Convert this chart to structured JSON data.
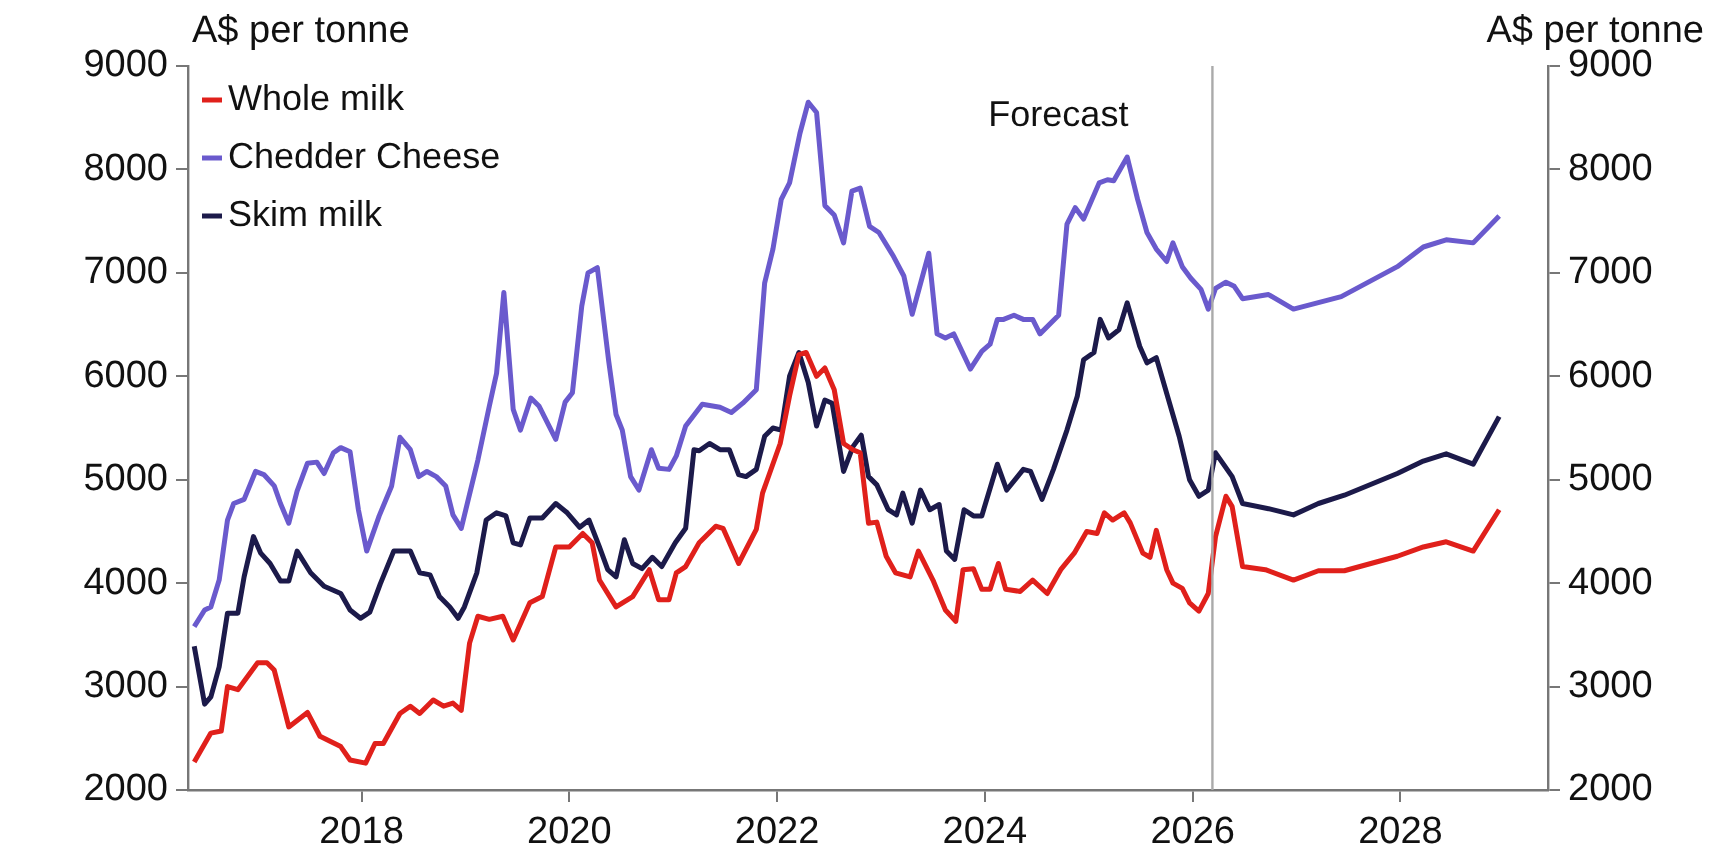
{
  "chart_data": {
    "type": "line",
    "ylabel": "A$ per tonne",
    "y2label": "A$ per tonne",
    "xlim": [
      2016.33,
      2029.42
    ],
    "xticks": [
      2018,
      2020,
      2022,
      2024,
      2026,
      2028
    ],
    "ylim": [
      2000,
      9000
    ],
    "yticks": [
      2000,
      3000,
      4000,
      5000,
      6000,
      7000,
      8000,
      9000
    ],
    "y2lim": [
      2000,
      9000
    ],
    "y2ticks": [
      2000,
      3000,
      4000,
      5000,
      6000,
      7000,
      8000,
      9000
    ],
    "grid": false,
    "legend": "top left",
    "marker": "none",
    "line_style": "solid",
    "ref_lines": [
      {
        "axis": "x",
        "value": 2026.19,
        "label": "Forecast",
        "color": "#aaaaaa"
      }
    ],
    "series": [
      {
        "name": "Whole milk",
        "color": "#e0201b",
        "x": [
          2016.39,
          2016.55,
          2016.65,
          2016.71,
          2016.81,
          2017.0,
          2017.09,
          2017.16,
          2017.3,
          2017.48,
          2017.6,
          2017.8,
          2017.89,
          2018.04,
          2018.13,
          2018.21,
          2018.37,
          2018.47,
          2018.56,
          2018.69,
          2018.79,
          2018.88,
          2018.96,
          2019.04,
          2019.12,
          2019.23,
          2019.36,
          2019.46,
          2019.62,
          2019.74,
          2019.87,
          2020.0,
          2020.13,
          2020.22,
          2020.29,
          2020.45,
          2020.61,
          2020.77,
          2020.86,
          2020.96,
          2021.03,
          2021.12,
          2021.25,
          2021.41,
          2021.48,
          2021.63,
          2021.8,
          2021.86,
          2022.03,
          2022.12,
          2022.21,
          2022.28,
          2022.38,
          2022.46,
          2022.55,
          2022.64,
          2022.73,
          2022.8,
          2022.88,
          2022.96,
          2023.05,
          2023.14,
          2023.28,
          2023.36,
          2023.5,
          2023.62,
          2023.72,
          2023.79,
          2023.89,
          2023.97,
          2024.05,
          2024.13,
          2024.2,
          2024.34,
          2024.46,
          2024.6,
          2024.73,
          2024.86,
          2024.98,
          2025.08,
          2025.15,
          2025.23,
          2025.34,
          2025.4,
          2025.52,
          2025.59,
          2025.65,
          2025.75,
          2025.81,
          2025.9,
          2025.97,
          2026.06,
          2026.15,
          2026.22,
          2026.32,
          2026.38,
          2026.48,
          2026.7,
          2026.97,
          2027.21,
          2027.46,
          2027.97,
          2028.22,
          2028.44,
          2028.7,
          2028.95
        ],
        "values": [
          2270,
          2550,
          2570,
          3000,
          2970,
          3230,
          3230,
          3160,
          2610,
          2750,
          2520,
          2420,
          2290,
          2260,
          2450,
          2450,
          2740,
          2810,
          2740,
          2870,
          2810,
          2840,
          2770,
          3420,
          3680,
          3650,
          3680,
          3450,
          3810,
          3870,
          4350,
          4350,
          4480,
          4390,
          4030,
          3770,
          3870,
          4130,
          3840,
          3840,
          4100,
          4160,
          4390,
          4550,
          4530,
          4190,
          4520,
          4870,
          5350,
          5810,
          6210,
          6230,
          6000,
          6080,
          5870,
          5350,
          5290,
          5260,
          4580,
          4590,
          4260,
          4100,
          4060,
          4310,
          4030,
          3740,
          3630,
          4130,
          4140,
          3940,
          3940,
          4190,
          3940,
          3920,
          4030,
          3900,
          4130,
          4290,
          4500,
          4480,
          4680,
          4610,
          4680,
          4580,
          4290,
          4250,
          4510,
          4130,
          4000,
          3950,
          3810,
          3730,
          3900,
          4450,
          4840,
          4740,
          4160,
          4130,
          4030,
          4120,
          4120,
          4260,
          4350,
          4400,
          4310,
          4710
        ]
      },
      {
        "name": "Chedder Cheese",
        "color": "#6a5acd",
        "x": [
          2016.39,
          2016.49,
          2016.55,
          2016.63,
          2016.71,
          2016.77,
          2016.87,
          2016.98,
          2017.06,
          2017.16,
          2017.22,
          2017.3,
          2017.38,
          2017.48,
          2017.57,
          2017.64,
          2017.73,
          2017.8,
          2017.89,
          2017.97,
          2018.05,
          2018.17,
          2018.29,
          2018.37,
          2018.47,
          2018.55,
          2018.63,
          2018.72,
          2018.81,
          2018.88,
          2018.96,
          2019.12,
          2019.23,
          2019.3,
          2019.37,
          2019.46,
          2019.53,
          2019.63,
          2019.71,
          2019.87,
          2019.96,
          2020.03,
          2020.12,
          2020.18,
          2020.27,
          2020.38,
          2020.45,
          2020.51,
          2020.59,
          2020.67,
          2020.79,
          2020.86,
          2020.96,
          2021.03,
          2021.12,
          2021.28,
          2021.45,
          2021.56,
          2021.67,
          2021.8,
          2021.88,
          2021.96,
          2022.04,
          2022.12,
          2022.22,
          2022.3,
          2022.38,
          2022.46,
          2022.55,
          2022.64,
          2022.72,
          2022.8,
          2022.89,
          2022.98,
          2023.12,
          2023.22,
          2023.3,
          2023.46,
          2023.54,
          2023.62,
          2023.7,
          2023.86,
          2023.97,
          2024.05,
          2024.12,
          2024.18,
          2024.28,
          2024.37,
          2024.46,
          2024.53,
          2024.71,
          2024.79,
          2024.87,
          2024.95,
          2025.1,
          2025.18,
          2025.24,
          2025.37,
          2025.47,
          2025.56,
          2025.65,
          2025.75,
          2025.81,
          2025.9,
          2025.98,
          2026.08,
          2026.15,
          2026.22,
          2026.32,
          2026.4,
          2026.48,
          2026.73,
          2026.97,
          2027.43,
          2027.97,
          2028.22,
          2028.44,
          2028.7,
          2028.95
        ],
        "values": [
          3580,
          3740,
          3770,
          4030,
          4610,
          4770,
          4810,
          5080,
          5050,
          4940,
          4770,
          4580,
          4890,
          5160,
          5170,
          5060,
          5260,
          5310,
          5270,
          4710,
          4310,
          4650,
          4940,
          5410,
          5290,
          5030,
          5080,
          5030,
          4940,
          4660,
          4530,
          5190,
          5710,
          6030,
          6810,
          5680,
          5480,
          5790,
          5710,
          5390,
          5750,
          5840,
          6680,
          7000,
          7050,
          6140,
          5630,
          5480,
          5030,
          4900,
          5290,
          5110,
          5100,
          5230,
          5520,
          5730,
          5700,
          5650,
          5740,
          5870,
          6900,
          7230,
          7710,
          7870,
          8350,
          8650,
          8550,
          7650,
          7560,
          7290,
          7790,
          7820,
          7450,
          7390,
          7160,
          6970,
          6600,
          7190,
          6410,
          6370,
          6410,
          6070,
          6240,
          6310,
          6550,
          6550,
          6590,
          6550,
          6550,
          6410,
          6590,
          7470,
          7630,
          7520,
          7870,
          7900,
          7890,
          8120,
          7710,
          7390,
          7230,
          7110,
          7290,
          7060,
          6950,
          6840,
          6650,
          6850,
          6910,
          6870,
          6750,
          6790,
          6650,
          6770,
          7060,
          7250,
          7320,
          7290,
          7550
        ]
      },
      {
        "name": "Skim milk",
        "color": "#1c1a4a",
        "x": [
          2016.39,
          2016.49,
          2016.55,
          2016.63,
          2016.71,
          2016.81,
          2016.87,
          2016.96,
          2017.03,
          2017.12,
          2017.22,
          2017.3,
          2017.38,
          2017.51,
          2017.64,
          2017.8,
          2017.89,
          2017.99,
          2018.08,
          2018.18,
          2018.31,
          2018.47,
          2018.56,
          2018.66,
          2018.75,
          2018.85,
          2018.93,
          2018.99,
          2019.11,
          2019.2,
          2019.3,
          2019.39,
          2019.46,
          2019.53,
          2019.62,
          2019.74,
          2019.87,
          2019.98,
          2020.1,
          2020.19,
          2020.29,
          2020.37,
          2020.45,
          2020.53,
          2020.61,
          2020.7,
          2020.8,
          2020.89,
          2021.02,
          2021.12,
          2021.2,
          2021.25,
          2021.35,
          2021.45,
          2021.54,
          2021.63,
          2021.7,
          2021.8,
          2021.88,
          2021.96,
          2022.04,
          2022.12,
          2022.21,
          2022.3,
          2022.38,
          2022.46,
          2022.53,
          2022.64,
          2022.73,
          2022.81,
          2022.88,
          2022.96,
          2023.07,
          2023.15,
          2023.21,
          2023.3,
          2023.38,
          2023.47,
          2023.56,
          2023.63,
          2023.71,
          2023.8,
          2023.89,
          2023.97,
          2024.12,
          2024.21,
          2024.37,
          2024.44,
          2024.55,
          2024.66,
          2024.79,
          2024.89,
          2024.95,
          2025.05,
          2025.11,
          2025.19,
          2025.29,
          2025.37,
          2025.49,
          2025.56,
          2025.65,
          2025.87,
          2025.97,
          2026.06,
          2026.15,
          2026.22,
          2026.38,
          2026.48,
          2026.73,
          2026.97,
          2027.21,
          2027.46,
          2027.97,
          2028.22,
          2028.44,
          2028.7,
          2028.95
        ],
        "values": [
          3390,
          2830,
          2900,
          3190,
          3710,
          3710,
          4060,
          4450,
          4290,
          4190,
          4020,
          4020,
          4310,
          4100,
          3970,
          3900,
          3740,
          3660,
          3720,
          3990,
          4310,
          4310,
          4100,
          4080,
          3870,
          3770,
          3660,
          3770,
          4100,
          4610,
          4680,
          4650,
          4390,
          4370,
          4630,
          4630,
          4770,
          4680,
          4540,
          4610,
          4350,
          4130,
          4060,
          4420,
          4190,
          4140,
          4250,
          4160,
          4390,
          4530,
          5290,
          5280,
          5350,
          5290,
          5290,
          5050,
          5030,
          5100,
          5420,
          5500,
          5480,
          6000,
          6230,
          5940,
          5520,
          5770,
          5740,
          5080,
          5320,
          5430,
          5030,
          4950,
          4710,
          4660,
          4870,
          4580,
          4900,
          4710,
          4760,
          4310,
          4230,
          4710,
          4650,
          4650,
          5150,
          4900,
          5100,
          5080,
          4810,
          5100,
          5480,
          5810,
          6160,
          6230,
          6550,
          6370,
          6450,
          6710,
          6290,
          6130,
          6180,
          5420,
          5000,
          4840,
          4900,
          5260,
          5030,
          4770,
          4720,
          4660,
          4770,
          4850,
          5060,
          5180,
          5250,
          5150,
          5610
        ]
      }
    ]
  }
}
